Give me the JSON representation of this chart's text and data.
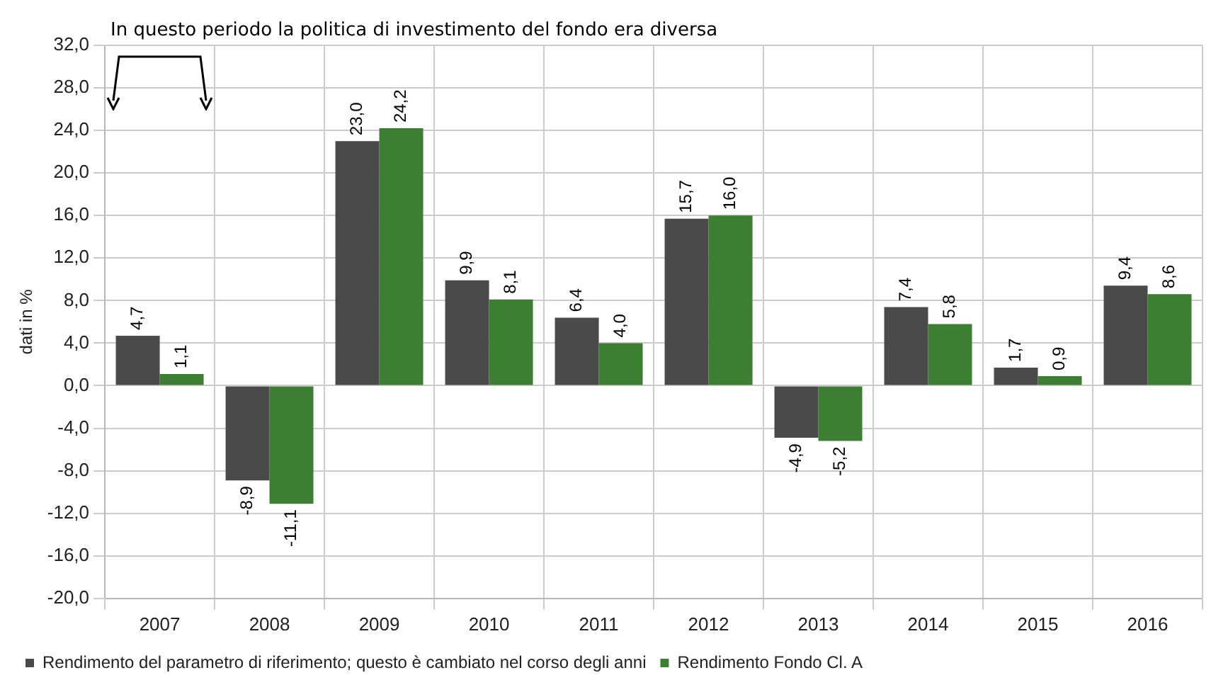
{
  "chart_data": {
    "type": "bar",
    "ylabel": "dati in %",
    "annotations": [
      "In questo periodo la politica di investimento del fondo era diversa"
    ],
    "categories": [
      "2007",
      "2008",
      "2009",
      "2010",
      "2011",
      "2012",
      "2013",
      "2014",
      "2015",
      "2016"
    ],
    "series": [
      {
        "name": "Rendimento del parametro di riferimento; questo è cambiato nel corso degli anni",
        "color": "#4a4a4a",
        "values": [
          4.7,
          -8.9,
          23.0,
          9.9,
          6.4,
          15.7,
          -4.9,
          7.4,
          1.7,
          9.4
        ],
        "value_labels": [
          "4,7",
          "-8,9",
          "23,0",
          "9,9",
          "6,4",
          "15,7",
          "-4,9",
          "7,4",
          "1,7",
          "9,4"
        ]
      },
      {
        "name": "Rendimento Fondo Cl. A",
        "color": "#3c7f32",
        "values": [
          1.1,
          -11.1,
          24.2,
          8.1,
          4.0,
          16.0,
          -5.2,
          5.8,
          0.9,
          8.6
        ],
        "value_labels": [
          "1,1",
          "-11,1",
          "24,2",
          "8,1",
          "4,0",
          "16,0",
          "-5,2",
          "5,8",
          "0,9",
          "8,6"
        ]
      }
    ],
    "ylim": [
      -20,
      32
    ],
    "yticks": [
      {
        "value": -20,
        "label": "-20,0"
      },
      {
        "value": -16,
        "label": "-16,0"
      },
      {
        "value": -12,
        "label": "-12,0"
      },
      {
        "value": -8,
        "label": "-8,0"
      },
      {
        "value": -4,
        "label": "-4,0"
      },
      {
        "value": 0,
        "label": "0,0"
      },
      {
        "value": 4,
        "label": "4,0"
      },
      {
        "value": 8,
        "label": "8,0"
      },
      {
        "value": 12,
        "label": "12,0"
      },
      {
        "value": 16,
        "label": "16,0"
      },
      {
        "value": 20,
        "label": "20,0"
      },
      {
        "value": 24,
        "label": "24,0"
      },
      {
        "value": 28,
        "label": "28,0"
      },
      {
        "value": 32,
        "label": "32,0"
      }
    ],
    "grid": true,
    "legend": "bottom"
  }
}
